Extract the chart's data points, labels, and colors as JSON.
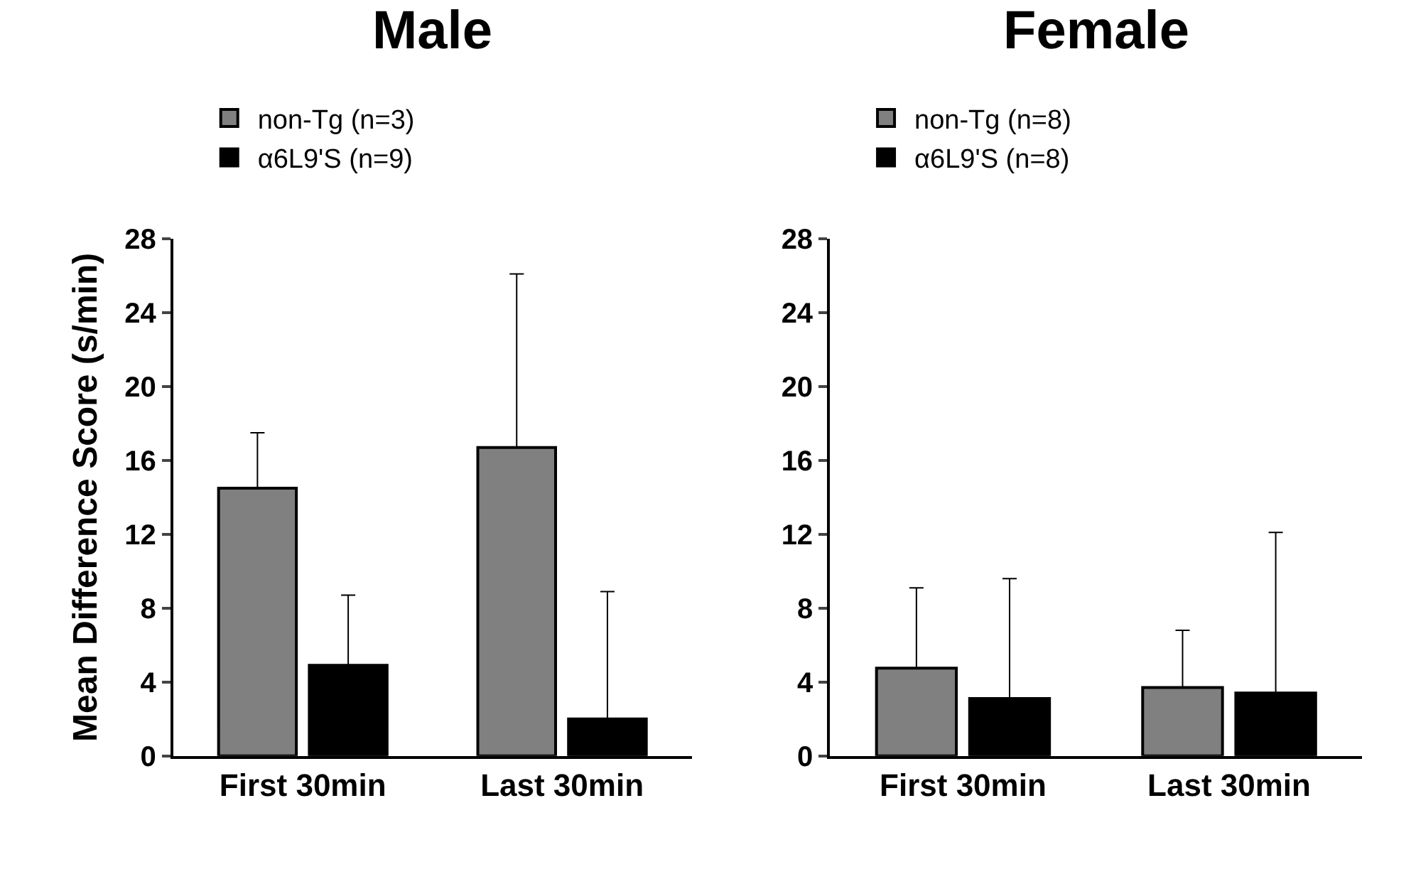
{
  "chart_data": [
    {
      "type": "bar",
      "title": "Male",
      "ylabel": "Mean Difference Score (s/min)",
      "categories": [
        "First 30min",
        "Last 30min"
      ],
      "series": [
        {
          "name": "non-Tg (n=3)",
          "color": "#808080",
          "values": [
            14.5,
            16.7
          ],
          "errors": [
            [
              14.5,
              17.5
            ],
            [
              16.7,
              26.1
            ]
          ]
        },
        {
          "name": "α6L9'S (n=9)",
          "color": "#000000",
          "values": [
            4.9,
            2.0
          ],
          "errors": [
            [
              4.9,
              8.7
            ],
            [
              2.0,
              8.9
            ]
          ]
        }
      ],
      "ylim": [
        0,
        28
      ],
      "yticks": [
        0,
        4,
        8,
        12,
        16,
        20,
        24,
        28
      ],
      "legend": "top left"
    },
    {
      "type": "bar",
      "title": "Female",
      "categories": [
        "First 30min",
        "Last 30min"
      ],
      "series": [
        {
          "name": "non-Tg (n=8)",
          "color": "#808080",
          "values": [
            4.75,
            3.7
          ],
          "errors": [
            [
              4.75,
              9.1
            ],
            [
              3.7,
              6.8
            ]
          ]
        },
        {
          "name": "α6L9'S (n=8)",
          "color": "#000000",
          "values": [
            3.1,
            3.4
          ],
          "errors": [
            [
              3.1,
              9.6
            ],
            [
              3.4,
              12.1
            ]
          ]
        }
      ],
      "ylim": [
        0,
        28
      ],
      "yticks": [
        0,
        4,
        8,
        12,
        16,
        20,
        24,
        28
      ],
      "legend": "top left"
    }
  ]
}
